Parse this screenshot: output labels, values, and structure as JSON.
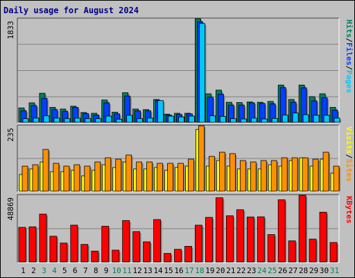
{
  "title": "Daily usage for August 2024",
  "colors": {
    "hits": "#00805c",
    "files": "#0040ff",
    "pages": "#00c8ff",
    "visits": "#ffff00",
    "sites": "#ff9000",
    "kbytes": "#ff0000",
    "weekend_day": "#00805c",
    "weekday_day": "#000000",
    "panel_bg": "#c0c0c0",
    "grid": "#808080"
  },
  "chart_data": [
    {
      "type": "bar",
      "panel": "top",
      "ymax_label": "1833",
      "ylim": [
        0,
        1833
      ],
      "legend": [
        "Pages",
        "/",
        "Files",
        "/",
        "Hits"
      ],
      "x": [
        1,
        2,
        3,
        4,
        5,
        6,
        7,
        8,
        9,
        10,
        11,
        12,
        13,
        14,
        15,
        16,
        17,
        18,
        19,
        20,
        21,
        22,
        23,
        24,
        25,
        26,
        27,
        28,
        29,
        30,
        31
      ],
      "series": [
        {
          "name": "Hits",
          "values": [
            255,
            345,
            515,
            265,
            235,
            285,
            175,
            160,
            395,
            180,
            525,
            235,
            225,
            405,
            145,
            160,
            160,
            1833,
            505,
            570,
            355,
            350,
            360,
            355,
            370,
            660,
            405,
            660,
            455,
            505,
            265
          ]
        },
        {
          "name": "Files",
          "values": [
            205,
            295,
            425,
            225,
            195,
            265,
            155,
            130,
            345,
            150,
            465,
            205,
            205,
            385,
            130,
            140,
            150,
            1780,
            445,
            500,
            305,
            305,
            345,
            335,
            325,
            615,
            355,
            610,
            380,
            435,
            215
          ]
        },
        {
          "name": "Pages",
          "values": [
            65,
            75,
            115,
            75,
            65,
            75,
            65,
            65,
            110,
            55,
            125,
            65,
            75,
            385,
            110,
            95,
            110,
            1750,
            115,
            105,
            65,
            60,
            75,
            60,
            70,
            130,
            165,
            135,
            125,
            125,
            75
          ]
        }
      ]
    },
    {
      "type": "bar",
      "panel": "middle",
      "ymax_label": "235",
      "ylim": [
        0,
        235
      ],
      "legend": [
        "Sites",
        "/",
        "Visits"
      ],
      "x": [
        1,
        2,
        3,
        4,
        5,
        6,
        7,
        8,
        9,
        10,
        11,
        12,
        13,
        14,
        15,
        16,
        17,
        18,
        19,
        20,
        21,
        22,
        23,
        24,
        25,
        26,
        27,
        28,
        29,
        30,
        31
      ],
      "series": [
        {
          "name": "Visits",
          "values": [
            60,
            80,
            105,
            70,
            70,
            75,
            55,
            75,
            95,
            85,
            105,
            80,
            80,
            85,
            75,
            85,
            90,
            222,
            90,
            110,
            90,
            80,
            80,
            80,
            95,
            90,
            110,
            120,
            90,
            115,
            65
          ]
        },
        {
          "name": "Sites",
          "values": [
            90,
            95,
            150,
            100,
            90,
            95,
            90,
            105,
            120,
            115,
            130,
            105,
            105,
            100,
            100,
            100,
            115,
            235,
            125,
            140,
            135,
            110,
            105,
            110,
            110,
            120,
            120,
            120,
            115,
            140,
            90
          ]
        }
      ]
    },
    {
      "type": "bar",
      "panel": "bottom",
      "ymax_label": "48869",
      "ylim": [
        0,
        48869
      ],
      "legend": [
        "KBytes"
      ],
      "x": [
        1,
        2,
        3,
        4,
        5,
        6,
        7,
        8,
        9,
        10,
        11,
        12,
        13,
        14,
        15,
        16,
        17,
        18,
        19,
        20,
        21,
        22,
        23,
        24,
        25,
        26,
        27,
        28,
        29,
        30,
        31
      ],
      "series": [
        {
          "name": "KBytes",
          "values": [
            25400,
            25800,
            35100,
            18900,
            13900,
            27000,
            12900,
            8000,
            26200,
            8700,
            30400,
            22300,
            14800,
            31100,
            6300,
            9300,
            11500,
            27000,
            32700,
            47100,
            33900,
            38300,
            33000,
            33100,
            20100,
            45600,
            15500,
            48869,
            16800,
            36500,
            14300
          ]
        }
      ]
    }
  ],
  "x_axis": {
    "labels": [
      "1",
      "2",
      "3",
      "4",
      "5",
      "6",
      "7",
      "8",
      "9",
      "10",
      "11",
      "12",
      "13",
      "14",
      "15",
      "16",
      "17",
      "18",
      "19",
      "20",
      "21",
      "22",
      "23",
      "24",
      "25",
      "26",
      "27",
      "28",
      "29",
      "30",
      "31"
    ],
    "weekend": [
      3,
      4,
      10,
      11,
      17,
      18,
      24,
      25,
      31
    ]
  }
}
